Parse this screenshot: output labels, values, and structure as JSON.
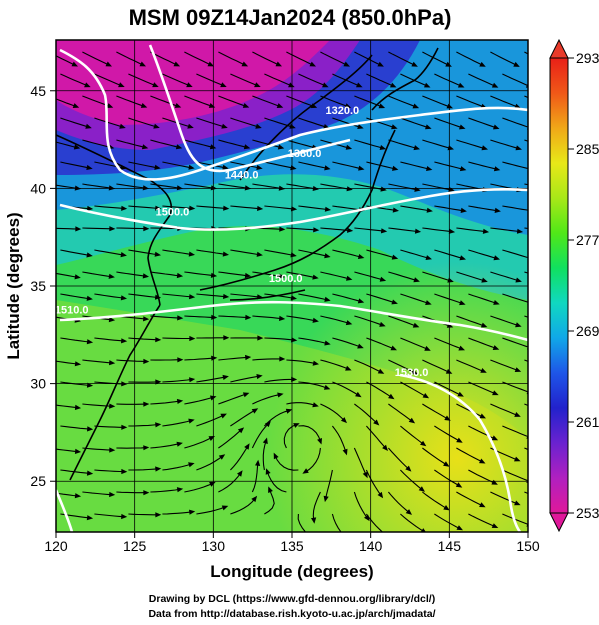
{
  "figure": {
    "title": "MSM 09Z14Jan2024 (850.0hPa)",
    "xlabel": "Longitude (degrees)",
    "ylabel": "Latitude  (degrees)",
    "credit_line1": "Drawing by DCL (https://www.gfd-dennou.org/library/dcl/)",
    "credit_line2": "Data from http://database.rish.kyoto-u.ac.jp/arch/jmadata/"
  },
  "map": {
    "lon_range": [
      120,
      150
    ],
    "lat_range": [
      22.4,
      47.6
    ],
    "lon_ticks": [
      120,
      125,
      130,
      135,
      140,
      145,
      150
    ],
    "lat_ticks": [
      25,
      30,
      35,
      40,
      45
    ],
    "shaded_field": "temperature",
    "vector_field": "wind",
    "contour_field": "geopotential height"
  },
  "colorbar": {
    "min": 253,
    "max": 293,
    "tick_values": [
      253,
      261,
      269,
      277,
      285,
      293
    ],
    "tick_labels": [
      "253",
      "261",
      "269",
      "277",
      "285",
      "293"
    ],
    "colors": [
      "#e0189a",
      "#b020c0",
      "#6a22d0",
      "#2222cc",
      "#1e56e8",
      "#10a8e8",
      "#10d8c0",
      "#10e060",
      "#50e818",
      "#a8e818",
      "#e8e818",
      "#f0a818",
      "#f05818",
      "#e82018"
    ],
    "extend": "both"
  },
  "contour_labels": [
    {
      "text": "1320.0",
      "lon": 138.2,
      "lat": 43.8
    },
    {
      "text": "1380.0",
      "lon": 135.8,
      "lat": 41.6
    },
    {
      "text": "1440.0",
      "lon": 131.8,
      "lat": 40.5
    },
    {
      "text": "1500.0",
      "lon": 127.4,
      "lat": 38.6
    },
    {
      "text": "1500.0",
      "lon": 134.6,
      "lat": 35.2
    },
    {
      "text": "1510.0",
      "lon": 121.0,
      "lat": 33.6
    },
    {
      "text": "1530.0",
      "lon": 142.6,
      "lat": 30.4
    }
  ]
}
